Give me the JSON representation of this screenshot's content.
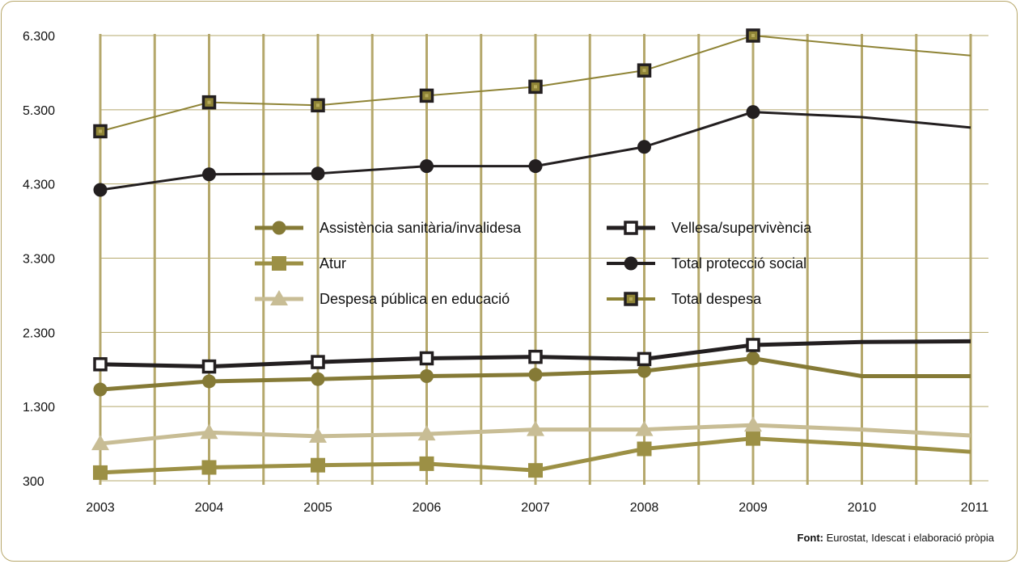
{
  "chart_data": {
    "type": "line",
    "title": "",
    "xlabel": "",
    "ylabel": "",
    "categories": [
      "2003",
      "2004",
      "2005",
      "2006",
      "2007",
      "2008",
      "2009",
      "2010",
      "2011"
    ],
    "ylim": [
      300,
      6300
    ],
    "yticks": [
      300,
      1300,
      2300,
      3300,
      4300,
      5300,
      6300
    ],
    "ytick_labels": [
      "300",
      "1.300",
      "2.300",
      "3.300",
      "4.300",
      "5.300",
      "6.300"
    ],
    "grid": true,
    "legend_position": "center",
    "series": [
      {
        "name": "Assistència sanitària/invalidesa",
        "marker": "circle",
        "color": "#857a36",
        "line_width": 5,
        "values": [
          1530,
          1640,
          1670,
          1710,
          1730,
          1780,
          1950,
          1710,
          1710
        ],
        "markers_at": [
          0,
          1,
          2,
          3,
          4,
          5,
          6
        ]
      },
      {
        "name": "Atur",
        "marker": "square",
        "color": "#9c9045",
        "line_width": 5,
        "values": [
          410,
          480,
          510,
          530,
          440,
          730,
          870,
          790,
          690
        ],
        "markers_at": [
          0,
          1,
          2,
          3,
          4,
          5,
          6
        ]
      },
      {
        "name": "Despesa pública en educació",
        "marker": "triangle",
        "color": "#c8bd95",
        "line_width": 5,
        "values": [
          800,
          950,
          900,
          930,
          990,
          990,
          1050,
          990,
          910
        ],
        "markers_at": [
          0,
          1,
          2,
          3,
          4,
          5,
          6
        ]
      },
      {
        "name": "Vellesa/supervivència",
        "marker": "open-square",
        "color": "#231f20",
        "line_width": 5,
        "values": [
          1870,
          1840,
          1900,
          1950,
          1970,
          1940,
          2130,
          2170,
          2180
        ],
        "markers_at": [
          0,
          1,
          2,
          3,
          4,
          5,
          6
        ]
      },
      {
        "name": "Total protecció social",
        "marker": "circle",
        "color": "#231f20",
        "line_width": 3,
        "values": [
          4220,
          4430,
          4440,
          4540,
          4540,
          4800,
          5270,
          5200,
          5060
        ],
        "markers_at": [
          0,
          1,
          2,
          3,
          4,
          5,
          6
        ]
      },
      {
        "name": "Total despesa",
        "marker": "dot-square",
        "color": "#8f8436",
        "line_width": 2,
        "values": [
          5010,
          5400,
          5360,
          5490,
          5610,
          5830,
          6300,
          6160,
          6030
        ],
        "markers_at": [
          0,
          1,
          2,
          3,
          4,
          5,
          6
        ]
      }
    ],
    "legend": [
      {
        "series": 0,
        "column": 0,
        "row": 0
      },
      {
        "series": 1,
        "column": 0,
        "row": 1
      },
      {
        "series": 2,
        "column": 0,
        "row": 2
      },
      {
        "series": 3,
        "column": 1,
        "row": 0
      },
      {
        "series": 4,
        "column": 1,
        "row": 1
      },
      {
        "series": 5,
        "column": 1,
        "row": 2
      }
    ],
    "colors": {
      "grid": "#b5a86c",
      "frame": "#b7a76a",
      "marker_edge": "#231f20",
      "marker_fill_open": "#ffffff"
    }
  },
  "source": {
    "label": "Font:",
    "text": " Eurostat, Idescat i elaboració pròpia"
  }
}
